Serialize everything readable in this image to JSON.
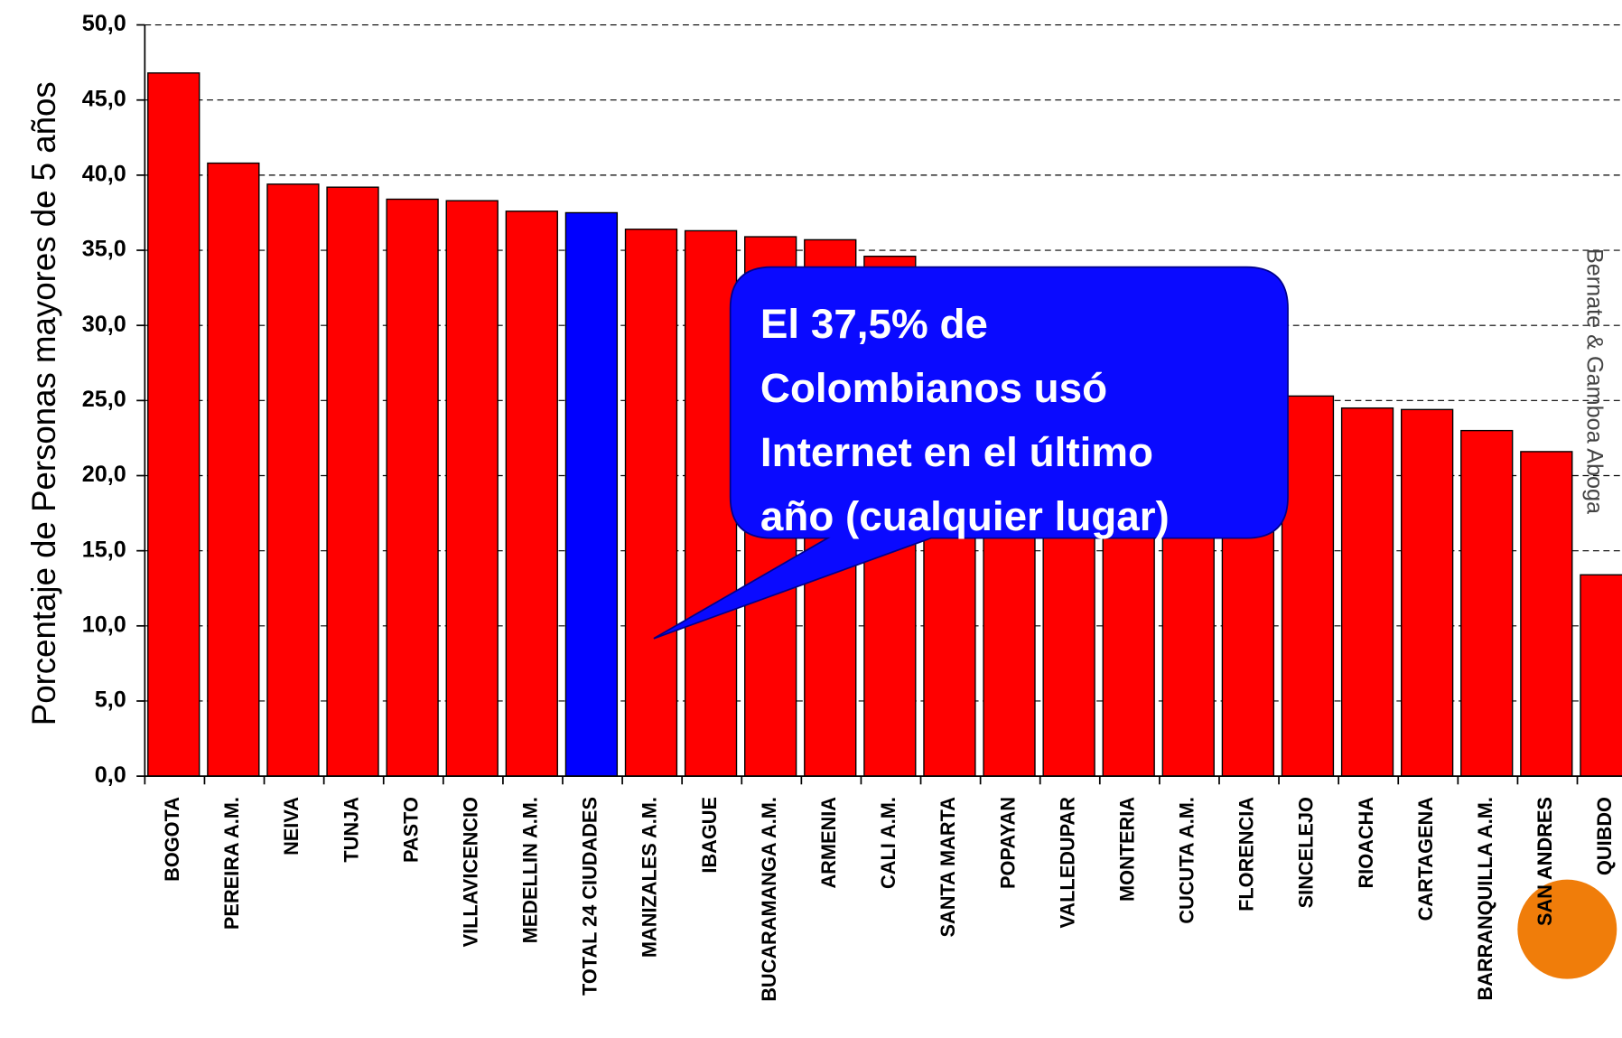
{
  "chart_data": {
    "type": "bar",
    "y_label": "Porcentaje de Personas mayores de 5 años",
    "categories": [
      "BOGOTA",
      "PEREIRA A.M.",
      "NEIVA",
      "TUNJA",
      "PASTO",
      "VILLAVICENCIO",
      "MEDELLIN A.M.",
      "TOTAL 24 CIUDADES",
      "MANIZALES A.M.",
      "IBAGUE",
      "BUCARAMANGA A.M.",
      "ARMENIA",
      "CALI A.M.",
      "SANTA MARTA",
      "POPAYAN",
      "VALLEDUPAR",
      "MONTERIA",
      "CUCUTA A.M.",
      "FLORENCIA",
      "SINCELEJO",
      "RIOACHA",
      "CARTAGENA",
      "BARRANQUILLA A.M.",
      "SAN ANDRES",
      "QUIBDO"
    ],
    "values": [
      46.8,
      40.8,
      39.4,
      39.2,
      38.4,
      38.3,
      37.6,
      37.5,
      36.4,
      36.3,
      35.9,
      35.7,
      34.6,
      32.0,
      30.5,
      29.0,
      28.0,
      27.0,
      26.0,
      25.3,
      24.5,
      24.4,
      23.0,
      21.6,
      13.4
    ],
    "colors": [
      "#ff0000",
      "#ff0000",
      "#ff0000",
      "#ff0000",
      "#ff0000",
      "#ff0000",
      "#ff0000",
      "#0000ff",
      "#ff0000",
      "#ff0000",
      "#ff0000",
      "#ff0000",
      "#ff0000",
      "#ff0000",
      "#ff0000",
      "#ff0000",
      "#ff0000",
      "#ff0000",
      "#ff0000",
      "#ff0000",
      "#ff0000",
      "#ff0000",
      "#ff0000",
      "#ff0000",
      "#ff0000"
    ],
    "ylim": [
      0,
      50
    ],
    "yticks": [
      {
        "value": 0,
        "label": "0,0"
      },
      {
        "value": 5,
        "label": "5,0"
      },
      {
        "value": 10,
        "label": "10,0"
      },
      {
        "value": 15,
        "label": "15,0"
      },
      {
        "value": 20,
        "label": "20,0"
      },
      {
        "value": 25,
        "label": "25,0"
      },
      {
        "value": 30,
        "label": "30,0"
      },
      {
        "value": 35,
        "label": "35,0"
      },
      {
        "value": 40,
        "label": "40,0"
      },
      {
        "value": 45,
        "label": "45,0"
      },
      {
        "value": 50,
        "label": "50,0"
      }
    ],
    "grid": true,
    "annotation": [
      "El 37,5% de",
      "Colombianos usó",
      "Internet en el último",
      "año (cualquier lugar)"
    ],
    "watermark": "Bernate & Gamboa Aboga"
  }
}
